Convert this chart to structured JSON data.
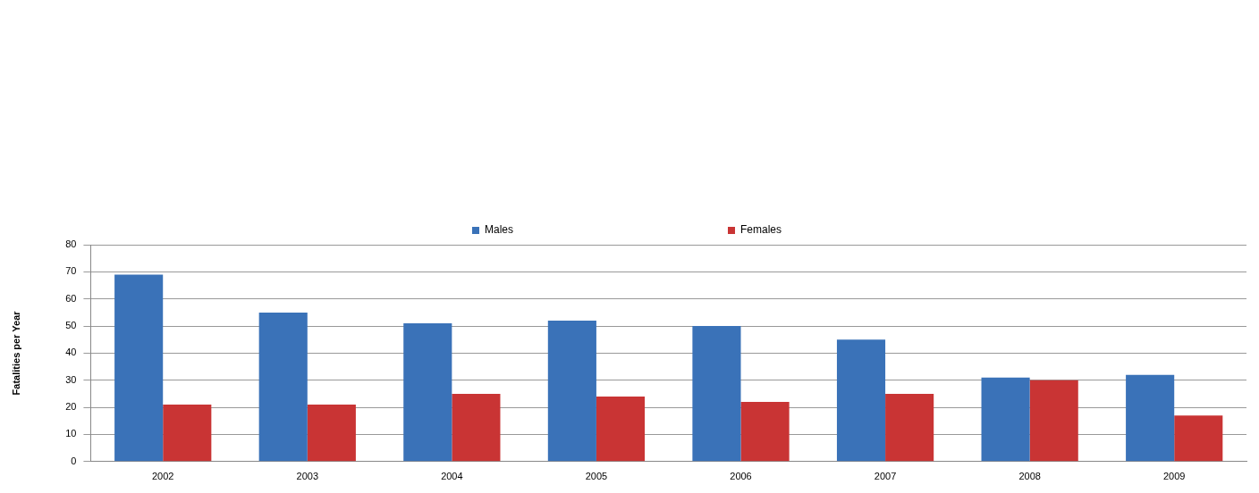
{
  "chart_data": {
    "type": "bar",
    "ylabel": "Fatalities per Year",
    "categories": [
      "2002",
      "2003",
      "2004",
      "2005",
      "2006",
      "2007",
      "2008",
      "2009"
    ],
    "series": [
      {
        "name": "Males",
        "color": "#3a72b8",
        "values": [
          69,
          55,
          51,
          52,
          50,
          45,
          31,
          32
        ]
      },
      {
        "name": "Females",
        "color": "#c93434",
        "values": [
          21,
          21,
          25,
          24,
          22,
          25,
          30,
          17
        ]
      }
    ],
    "ylim": [
      0,
      80
    ],
    "yticks": [
      0,
      10,
      20,
      30,
      40,
      50,
      60,
      70,
      80
    ],
    "grid": "y",
    "legend": "top"
  }
}
